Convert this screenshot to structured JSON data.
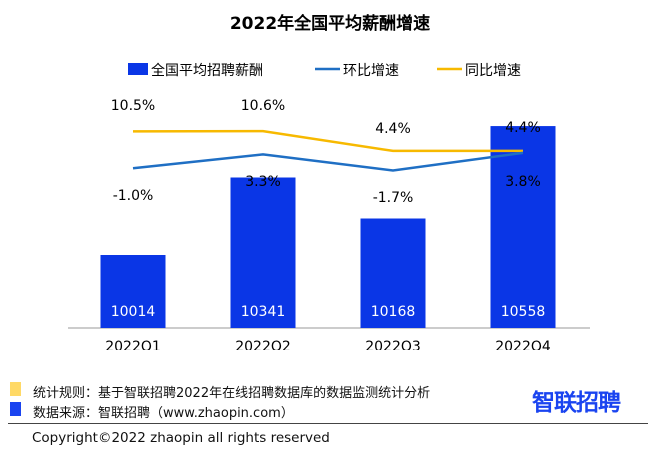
{
  "chart_data": {
    "type": "bar+line",
    "title": "2022年全国平均薪酬增速",
    "categories": [
      "2022Q1",
      "2022Q2",
      "2022Q3",
      "2022Q4"
    ],
    "series": [
      {
        "name": "全国平均招聘薪酬",
        "type": "bar",
        "values": [
          10014,
          10341,
          10168,
          10558
        ],
        "labels": [
          "10014",
          "10341",
          "10168",
          "10558"
        ],
        "color": "#0a36e6"
      },
      {
        "name": "环比增速",
        "type": "line",
        "values": [
          -1.0,
          3.3,
          -1.7,
          3.8
        ],
        "labels": [
          "-1.0%",
          "3.3%",
          "-1.7%",
          "3.8%"
        ],
        "color": "#1f6fc4"
      },
      {
        "name": "同比增速",
        "type": "line",
        "values": [
          10.5,
          10.6,
          4.4,
          4.4
        ],
        "labels": [
          "10.5%",
          "10.6%",
          "4.4%",
          "4.4%"
        ],
        "color": "#f7b900"
      }
    ],
    "legend_position": "top",
    "grid": false
  },
  "footer": {
    "rule_color": "#ffd966",
    "source_color": "#1a44f0",
    "rule": "统计规则：基于智联招聘2022年在线招聘数据库的数据监测统计分析",
    "source": "数据来源：智联招聘（www.zhaopin.com）",
    "logo": "智联招聘",
    "copyright": "Copyright©2022 zhaopin all rights reserved"
  }
}
